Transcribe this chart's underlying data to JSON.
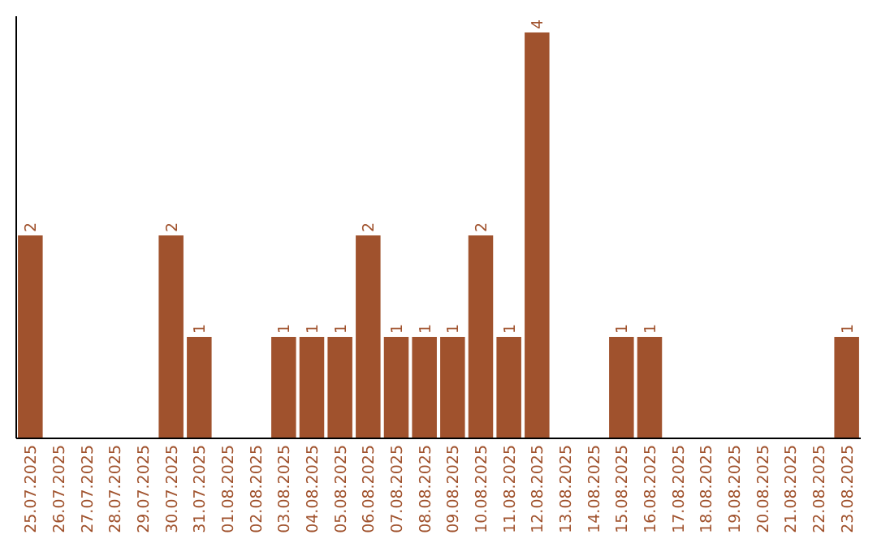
{
  "chart_data": {
    "type": "bar",
    "categories": [
      "25.07.2025",
      "26.07.2025",
      "27.07.2025",
      "28.07.2025",
      "29.07.2025",
      "30.07.2025",
      "31.07.2025",
      "01.08.2025",
      "02.08.2025",
      "03.08.2025",
      "04.08.2025",
      "05.08.2025",
      "06.08.2025",
      "07.08.2025",
      "08.08.2025",
      "09.08.2025",
      "10.08.2025",
      "11.08.2025",
      "12.08.2025",
      "13.08.2025",
      "14.08.2025",
      "15.08.2025",
      "16.08.2025",
      "17.08.2025",
      "18.08.2025",
      "19.08.2025",
      "20.08.2025",
      "21.08.2025",
      "22.08.2025",
      "23.08.2025"
    ],
    "values": [
      2,
      0,
      0,
      0,
      0,
      2,
      1,
      0,
      0,
      1,
      1,
      1,
      2,
      1,
      1,
      1,
      2,
      1,
      4,
      0,
      0,
      1,
      1,
      0,
      0,
      0,
      0,
      0,
      0,
      1
    ],
    "value_labels": [
      "2",
      null,
      null,
      null,
      null,
      "2",
      "1",
      null,
      null,
      "1",
      "1",
      "1",
      "2",
      "1",
      "1",
      "1",
      "2",
      "1",
      "4",
      null,
      null,
      "1",
      "1",
      null,
      null,
      null,
      null,
      null,
      null,
      "1"
    ],
    "color": "#a0522d"
  }
}
